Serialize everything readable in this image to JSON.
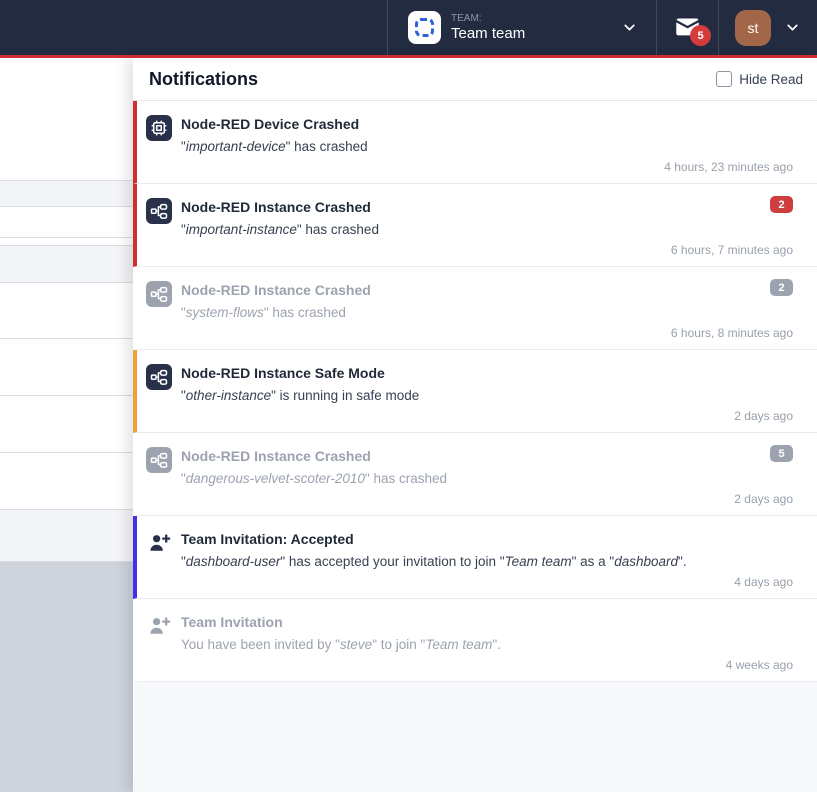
{
  "topnav": {
    "team_kicker": "TEAM:",
    "team_name": "Team team",
    "mail_badge": "5",
    "avatar_initials": "st"
  },
  "drawer": {
    "title": "Notifications",
    "hide_read_label": "Hide Read",
    "notifications": [
      {
        "icon": "chip",
        "title": "Node-RED Device Crashed",
        "desc": [
          {
            "t": "\""
          },
          {
            "t": "important-device",
            "i": true
          },
          {
            "t": "\" has crashed"
          }
        ],
        "time": "4 hours, 23 minutes ago",
        "read": false,
        "accent_color": "#d12f2f",
        "badge": null
      },
      {
        "icon": "instance",
        "title": "Node-RED Instance Crashed",
        "desc": [
          {
            "t": "\""
          },
          {
            "t": "important-instance",
            "i": true
          },
          {
            "t": "\" has crashed"
          }
        ],
        "time": "6 hours, 7 minutes ago",
        "read": false,
        "accent_color": "#d12f2f",
        "badge": "2",
        "badge_color": "#ce3e3e"
      },
      {
        "icon": "instance",
        "title": "Node-RED Instance Crashed",
        "desc": [
          {
            "t": "\""
          },
          {
            "t": "system-flows",
            "i": true
          },
          {
            "t": "\" has crashed"
          }
        ],
        "time": "6 hours, 8 minutes ago",
        "read": true,
        "accent_color": null,
        "badge": "2",
        "badge_color": "#9ca3af"
      },
      {
        "icon": "instance",
        "title": "Node-RED Instance Safe Mode",
        "desc": [
          {
            "t": "\""
          },
          {
            "t": "other-instance",
            "i": true
          },
          {
            "t": "\" is running in safe mode"
          }
        ],
        "time": "2 days ago",
        "read": false,
        "accent_color": "#eea236",
        "badge": null
      },
      {
        "icon": "instance",
        "title": "Node-RED Instance Crashed",
        "desc": [
          {
            "t": "\""
          },
          {
            "t": "dangerous-velvet-scoter-2010",
            "i": true
          },
          {
            "t": "\" has crashed"
          }
        ],
        "time": "2 days ago",
        "read": true,
        "accent_color": null,
        "badge": "5",
        "badge_color": "#9ca3af"
      },
      {
        "icon": "user-add",
        "icon_style": "bare",
        "title": "Team Invitation: Accepted",
        "desc": [
          {
            "t": "\""
          },
          {
            "t": "dashboard-user",
            "i": true
          },
          {
            "t": "\" has accepted your invitation to join \""
          },
          {
            "t": "Team team",
            "i": true
          },
          {
            "t": "\" as a \""
          },
          {
            "t": "dashboard",
            "i": true
          },
          {
            "t": "\"."
          }
        ],
        "time": "4 days ago",
        "read": false,
        "accent_color": "#4331e8",
        "badge": null
      },
      {
        "icon": "user-add",
        "icon_style": "bare",
        "title": "Team Invitation",
        "desc": [
          {
            "t": "You have been invited by \""
          },
          {
            "t": "steve",
            "i": true
          },
          {
            "t": "\" to join \""
          },
          {
            "t": "Team team",
            "i": true
          },
          {
            "t": "\"."
          }
        ],
        "time": "4 weeks ago",
        "read": true,
        "accent_color": null,
        "badge": null
      }
    ]
  },
  "colors": {
    "navbar-bg": "#232b41",
    "navbar-accent-line": "#d12f2f",
    "mail-badge-bg": "#d43c3c",
    "avatar-bg": "#a26749",
    "icon-box-bg": "#283149",
    "read-gray": "#9ca3af",
    "drawer-bg": "#f7f8fa"
  }
}
